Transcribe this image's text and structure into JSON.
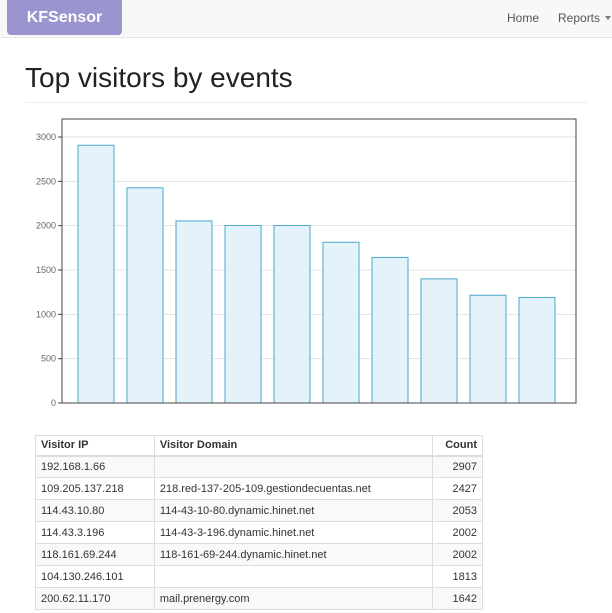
{
  "navbar": {
    "brand": "KFSensor",
    "home": "Home",
    "reports": "Reports"
  },
  "page": {
    "title": "Top visitors by events"
  },
  "chart_data": {
    "type": "bar",
    "categories": [
      "192.168.1.66",
      "109.205.137.218",
      "114.43.10.80",
      "114.43.3.196",
      "118.161.69.244",
      "104.130.246.101",
      "200.62.11.170",
      "",
      "",
      ""
    ],
    "values": [
      2907,
      2427,
      2053,
      2002,
      2002,
      1813,
      1642,
      1400,
      1215,
      1190
    ],
    "title": "",
    "xlabel": "",
    "ylabel": "",
    "ylim": [
      0,
      3000
    ],
    "yticks": [
      0,
      500,
      1000,
      1500,
      2000,
      2500,
      3000
    ],
    "grid": true,
    "bar_fill": "#e4f2f9",
    "bar_stroke": "#4aa8cc"
  },
  "table": {
    "headers": [
      "Visitor IP",
      "Visitor Domain",
      "Count"
    ],
    "rows": [
      [
        "192.168.1.66",
        "",
        "2907"
      ],
      [
        "109.205.137.218",
        "218.red-137-205-109.gestiondecuentas.net",
        "2427"
      ],
      [
        "114.43.10.80",
        "114-43-10-80.dynamic.hinet.net",
        "2053"
      ],
      [
        "114.43.3.196",
        "114-43-3-196.dynamic.hinet.net",
        "2002"
      ],
      [
        "118.161.69.244",
        "118-161-69-244.dynamic.hinet.net",
        "2002"
      ],
      [
        "104.130.246.101",
        "",
        "1813"
      ],
      [
        "200.62.11.170",
        "mail.prenergy.com",
        "1642"
      ]
    ]
  }
}
